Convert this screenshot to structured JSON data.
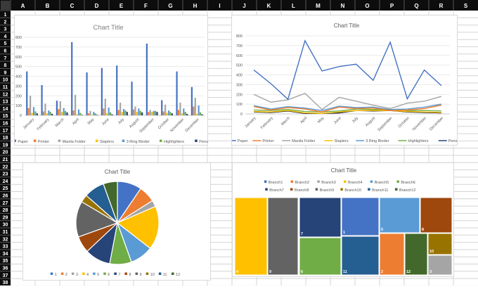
{
  "sheet": {
    "columns": [
      "A",
      "B",
      "C",
      "D",
      "E",
      "F",
      "G",
      "H",
      "I",
      "J",
      "K",
      "L",
      "M",
      "N",
      "O",
      "P",
      "Q",
      "R",
      "S"
    ],
    "rows": [
      1,
      2,
      3,
      4,
      5,
      6,
      7,
      8,
      9,
      10,
      11,
      12,
      13,
      14,
      15,
      16,
      17,
      18,
      19,
      20,
      21,
      22,
      23,
      24,
      25,
      26,
      27,
      28,
      29,
      30,
      31,
      32,
      33,
      34,
      35,
      36,
      37,
      38
    ]
  },
  "colors": {
    "header_bg": "#0d0d0d",
    "series": [
      "#4472C4",
      "#ED7D31",
      "#A5A5A5",
      "#FFC000",
      "#5B9BD5",
      "#70AD47",
      "#264478"
    ],
    "branches": [
      "#4472C4",
      "#ED7D31",
      "#A5A5A5",
      "#FFC000",
      "#5B9BD5",
      "#70AD47",
      "#264478",
      "#9E480E",
      "#636363",
      "#997300",
      "#255E91",
      "#43682B"
    ]
  },
  "chart_data": [
    {
      "type": "bar",
      "title": "Chart Title",
      "categories": [
        "January",
        "February",
        "March",
        "April",
        "May",
        "June",
        "July",
        "August",
        "September",
        "October",
        "November",
        "December"
      ],
      "ylim": [
        0,
        800
      ],
      "yticks": [
        0,
        100,
        200,
        300,
        400,
        500,
        600,
        700,
        800
      ],
      "grid": true,
      "legend": "bottom",
      "series": [
        {
          "name": "Paper",
          "values": [
            450,
            310,
            150,
            750,
            440,
            485,
            510,
            345,
            735,
            155,
            450,
            290
          ]
        },
        {
          "name": "Printer",
          "values": [
            75,
            40,
            65,
            50,
            20,
            70,
            55,
            60,
            35,
            40,
            55,
            90
          ]
        },
        {
          "name": "Manila Folder",
          "values": [
            200,
            120,
            145,
            210,
            45,
            170,
            130,
            90,
            55,
            110,
            130,
            180
          ]
        },
        {
          "name": "Staplers",
          "values": [
            25,
            20,
            35,
            10,
            5,
            20,
            35,
            35,
            35,
            25,
            20,
            15
          ]
        },
        {
          "name": "3 Ring Binder",
          "values": [
            85,
            50,
            75,
            60,
            35,
            80,
            65,
            70,
            45,
            50,
            70,
            100
          ]
        },
        {
          "name": "Highlighters",
          "values": [
            40,
            35,
            45,
            25,
            20,
            30,
            50,
            45,
            45,
            35,
            35,
            30
          ]
        },
        {
          "name": "Pens",
          "values": [
            20,
            15,
            30,
            5,
            5,
            10,
            35,
            30,
            35,
            20,
            15,
            10
          ]
        }
      ]
    },
    {
      "type": "line",
      "title": "Chart Title",
      "categories": [
        "January",
        "February",
        "March",
        "April",
        "May",
        "June",
        "July",
        "August",
        "September",
        "October",
        "November",
        "December"
      ],
      "ylim": [
        0,
        800
      ],
      "yticks": [
        0,
        100,
        200,
        300,
        400,
        500,
        600,
        700,
        800
      ],
      "grid": true,
      "legend": "bottom",
      "series_ref": "same as bar chart series"
    },
    {
      "type": "pie",
      "title": "Chart Title",
      "legend": "bottom",
      "labels": [
        "1",
        "2",
        "3",
        "4",
        "5",
        "6",
        "7",
        "8",
        "9",
        "10",
        "11",
        "12"
      ],
      "values": [
        9.5,
        6.5,
        2.5,
        17,
        9,
        8.5,
        10,
        6.5,
        14,
        3,
        8,
        5.5
      ]
    },
    {
      "type": "treemap",
      "title": "Chart Title",
      "legend": "top",
      "legend_labels": [
        "Branch1",
        "Branch2",
        "Branch3",
        "Branch4",
        "Branch5",
        "Branch6",
        "Branch7",
        "Branch8",
        "Branch9",
        "Branch10",
        "Branch11",
        "Branch12"
      ],
      "labels": [
        "1",
        "2",
        "3",
        "4",
        "5",
        "6",
        "7",
        "8",
        "9",
        "10",
        "11",
        "12"
      ]
    }
  ]
}
